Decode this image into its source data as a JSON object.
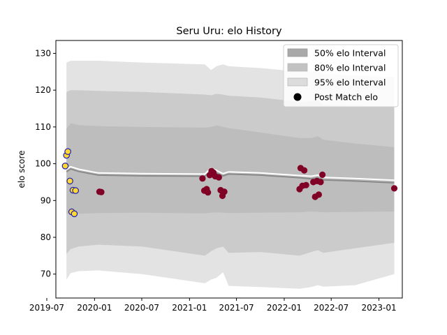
{
  "chart_data": {
    "type": "line",
    "title": "Seru Uru: elo History",
    "xlabel": "",
    "ylabel": "elo score",
    "xlim": [
      "2019-08-05",
      "2023-04-01"
    ],
    "ylim": [
      63.5,
      133.5
    ],
    "x_ticks": [
      "2019-07-01",
      "2020-01-01",
      "2020-07-01",
      "2021-01-01",
      "2021-07-01",
      "2022-01-01",
      "2022-07-01",
      "2023-01-01"
    ],
    "x_tick_labels": [
      "2019-07",
      "2020-01",
      "2020-07",
      "2021-01",
      "2021-07",
      "2022-01",
      "2022-07",
      "2023-01"
    ],
    "y_ticks": [
      70,
      80,
      90,
      100,
      110,
      120,
      130
    ],
    "colors": {
      "band95": "#e3e3e3",
      "band80": "#cbcbcb",
      "band50": "#bdbdbd",
      "mean_line": "#ffffff",
      "median_line": "#8a8a8a",
      "match_fill_home": "#800026",
      "match_fill_start": "#ffd92f",
      "match_edge_start": "#2020b0"
    },
    "interval_dates": [
      "2019-09-15",
      "2019-10-01",
      "2019-11-01",
      "2020-01-15",
      "2020-07-01",
      "2021-03-01",
      "2021-03-25",
      "2021-04-15",
      "2021-05-10",
      "2021-06-01",
      "2021-10-01",
      "2022-03-01",
      "2022-04-15",
      "2022-05-10",
      "2022-06-01",
      "2022-10-01",
      "2023-03-01"
    ],
    "series": [
      {
        "name": "50% elo Interval",
        "lower": [
          86.5,
          86.3,
          86.4,
          86.6,
          86.7,
          86.5,
          86.7,
          86.8,
          86.7,
          86.6,
          86.7,
          86.8,
          87.0,
          86.9,
          86.8,
          86.9,
          87.0
        ],
        "upper": [
          109.5,
          111.0,
          110.5,
          110.2,
          110.0,
          109.8,
          110.0,
          110.4,
          110.0,
          109.7,
          108.5,
          107.0,
          107.0,
          107.5,
          106.5,
          105.5,
          104.5
        ]
      },
      {
        "name": "80% elo Interval",
        "lower": [
          75.5,
          76.8,
          77.5,
          78.0,
          77.5,
          75.0,
          76.2,
          77.0,
          77.5,
          75.8,
          76.0,
          75.0,
          76.0,
          76.5,
          75.8,
          77.0,
          78.5
        ],
        "upper": [
          119.5,
          120.0,
          120.0,
          119.8,
          119.5,
          118.8,
          118.6,
          119.0,
          118.8,
          118.5,
          118.0,
          116.8,
          117.0,
          117.3,
          116.0,
          115.8,
          115.5
        ]
      },
      {
        "name": "95% elo Interval",
        "lower": [
          68.5,
          70.3,
          70.8,
          71.0,
          70.0,
          67.5,
          68.5,
          69.0,
          70.5,
          66.8,
          66.5,
          66.0,
          66.5,
          67.0,
          66.6,
          67.0,
          70.0
        ],
        "upper": [
          127.5,
          128.0,
          128.0,
          128.0,
          127.5,
          127.0,
          125.5,
          126.5,
          127.0,
          126.5,
          126.0,
          125.0,
          125.0,
          125.0,
          124.5,
          124.0,
          123.5
        ]
      }
    ],
    "mean_line": {
      "dates": [
        "2019-09-15",
        "2019-10-01",
        "2019-11-01",
        "2020-01-15",
        "2020-07-01",
        "2021-03-01",
        "2021-03-25",
        "2021-04-15",
        "2021-05-10",
        "2021-06-01",
        "2021-10-01",
        "2022-03-01",
        "2022-04-15",
        "2022-05-10",
        "2022-06-01",
        "2022-10-01",
        "2023-03-01"
      ],
      "values": [
        98.5,
        99.2,
        98.5,
        97.5,
        97.3,
        97.2,
        98.8,
        98.2,
        97.3,
        97.8,
        97.5,
        96.8,
        96.6,
        96.9,
        96.3,
        96.0,
        95.5
      ]
    },
    "median_line": {
      "dates": [
        "2019-09-15",
        "2019-10-01",
        "2019-11-01",
        "2020-01-15",
        "2020-07-01",
        "2021-03-01",
        "2021-03-25",
        "2021-04-15",
        "2021-05-10",
        "2021-06-01",
        "2021-10-01",
        "2022-03-01",
        "2022-04-15",
        "2022-05-10",
        "2022-06-01",
        "2022-10-01",
        "2023-03-01"
      ],
      "values": [
        97.8,
        98.6,
        97.9,
        96.9,
        96.7,
        96.6,
        98.1,
        97.5,
        96.7,
        97.2,
        96.9,
        96.2,
        95.9,
        96.2,
        95.6,
        95.3,
        94.8
      ]
    },
    "post_match": {
      "name": "Post Match elo",
      "points": [
        {
          "date": "2019-09-10",
          "elo": 99.4,
          "style": "start"
        },
        {
          "date": "2019-09-15",
          "elo": 102.3,
          "style": "start"
        },
        {
          "date": "2019-09-20",
          "elo": 103.3,
          "style": "start"
        },
        {
          "date": "2019-09-28",
          "elo": 95.3,
          "style": "start"
        },
        {
          "date": "2019-10-05",
          "elo": 86.9,
          "style": "start"
        },
        {
          "date": "2019-10-10",
          "elo": 92.8,
          "style": "start"
        },
        {
          "date": "2019-10-15",
          "elo": 86.4,
          "style": "start"
        },
        {
          "date": "2019-10-20",
          "elo": 92.7,
          "style": "start"
        },
        {
          "date": "2020-01-20",
          "elo": 92.4,
          "style": "home"
        },
        {
          "date": "2020-01-27",
          "elo": 92.3,
          "style": "home"
        },
        {
          "date": "2021-02-20",
          "elo": 96.0,
          "style": "home"
        },
        {
          "date": "2021-02-27",
          "elo": 92.7,
          "style": "home"
        },
        {
          "date": "2021-03-08",
          "elo": 93.1,
          "style": "home"
        },
        {
          "date": "2021-03-13",
          "elo": 92.2,
          "style": "home"
        },
        {
          "date": "2021-03-20",
          "elo": 96.9,
          "style": "home"
        },
        {
          "date": "2021-03-27",
          "elo": 98.0,
          "style": "home"
        },
        {
          "date": "2021-04-03",
          "elo": 97.6,
          "style": "home"
        },
        {
          "date": "2021-04-10",
          "elo": 96.6,
          "style": "home"
        },
        {
          "date": "2021-04-24",
          "elo": 96.3,
          "style": "home"
        },
        {
          "date": "2021-05-01",
          "elo": 92.8,
          "style": "home"
        },
        {
          "date": "2021-05-08",
          "elo": 91.3,
          "style": "home"
        },
        {
          "date": "2021-05-15",
          "elo": 92.4,
          "style": "home"
        },
        {
          "date": "2022-03-01",
          "elo": 93.1,
          "style": "home"
        },
        {
          "date": "2022-03-05",
          "elo": 98.8,
          "style": "home"
        },
        {
          "date": "2022-03-12",
          "elo": 94.0,
          "style": "home"
        },
        {
          "date": "2022-03-19",
          "elo": 98.2,
          "style": "home"
        },
        {
          "date": "2022-03-26",
          "elo": 94.2,
          "style": "home"
        },
        {
          "date": "2022-04-23",
          "elo": 95.0,
          "style": "home"
        },
        {
          "date": "2022-04-30",
          "elo": 91.0,
          "style": "home"
        },
        {
          "date": "2022-05-07",
          "elo": 95.3,
          "style": "home"
        },
        {
          "date": "2022-05-14",
          "elo": 91.6,
          "style": "home"
        },
        {
          "date": "2022-05-21",
          "elo": 95.0,
          "style": "home"
        },
        {
          "date": "2022-05-28",
          "elo": 97.0,
          "style": "home"
        },
        {
          "date": "2023-03-01",
          "elo": 93.3,
          "style": "home"
        }
      ]
    },
    "legend": {
      "placement": "top-right",
      "entries": [
        "50% elo Interval",
        "80% elo Interval",
        "95% elo Interval",
        "Post Match elo"
      ]
    },
    "grid": false
  }
}
